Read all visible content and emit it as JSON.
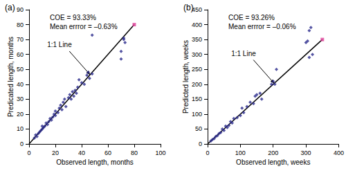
{
  "chart_data": [
    {
      "type": "scatter",
      "title": "(a)",
      "x_label": "Observed length, months",
      "y_label": "Predicated length, months",
      "annotations": [
        "COE = 93.33%",
        "Mean errror = –0.63%",
        "1:1 Line"
      ],
      "xlim": [
        0,
        100
      ],
      "xticks": [
        0,
        20,
        40,
        60,
        80,
        100
      ],
      "ylim": [
        0,
        90
      ],
      "yticks": [
        0,
        10,
        20,
        30,
        40,
        50,
        60,
        70,
        80,
        90
      ],
      "grid": false,
      "series": [
        {
          "color": "#2b2b8c",
          "marker": "diamond",
          "x": [
            4,
            5,
            6,
            7,
            8,
            9,
            10,
            10,
            11,
            12,
            13,
            14,
            15,
            16,
            17,
            18,
            19,
            20,
            20,
            22,
            23,
            24,
            25,
            26,
            27,
            28,
            30,
            31,
            32,
            33,
            34,
            35,
            36,
            37,
            38,
            40,
            42,
            44,
            45,
            46,
            48,
            48,
            70,
            70,
            72,
            72,
            73
          ],
          "values": [
            4,
            6,
            5,
            7,
            8,
            9,
            10,
            12,
            11,
            12,
            14,
            13,
            15,
            17,
            16,
            18,
            20,
            19,
            22,
            21,
            24,
            26,
            23,
            28,
            30,
            25,
            31,
            33,
            30,
            35,
            32,
            36,
            34,
            38,
            43,
            41,
            40,
            46,
            48,
            44,
            47,
            73,
            57,
            62,
            70,
            71,
            68
          ]
        },
        {
          "color": "#e0409a",
          "marker": "square",
          "x": [
            80
          ],
          "values": [
            80
          ]
        },
        {
          "type": "line",
          "color": "#000000",
          "x": [
            0,
            80
          ],
          "values": [
            0,
            80
          ]
        }
      ]
    },
    {
      "type": "scatter",
      "title": "(b)",
      "x_label": "Observed length, weeks",
      "y_label": "Predicted length, weeks",
      "annotations": [
        "COE = 93.26%",
        "Mean errror = –0.06%",
        "1:1 Line"
      ],
      "xlim": [
        0,
        400
      ],
      "xticks": [
        0,
        100,
        200,
        300,
        400
      ],
      "ylim": [
        0,
        450
      ],
      "yticks": [
        0,
        50,
        100,
        150,
        200,
        250,
        300,
        350,
        400,
        450
      ],
      "grid": false,
      "series": [
        {
          "color": "#2b2b8c",
          "marker": "diamond",
          "x": [
            10,
            15,
            20,
            25,
            30,
            35,
            40,
            45,
            50,
            55,
            60,
            65,
            70,
            75,
            80,
            90,
            100,
            105,
            110,
            120,
            130,
            140,
            145,
            150,
            160,
            165,
            195,
            200,
            205,
            210,
            300,
            305,
            310,
            315,
            310,
            320
          ],
          "values": [
            10,
            15,
            18,
            25,
            28,
            35,
            38,
            50,
            45,
            60,
            55,
            62,
            75,
            70,
            85,
            88,
            95,
            120,
            105,
            125,
            140,
            135,
            160,
            165,
            170,
            150,
            200,
            210,
            200,
            250,
            340,
            345,
            380,
            390,
            290,
            300
          ]
        },
        {
          "color": "#e0409a",
          "marker": "square",
          "x": [
            350
          ],
          "values": [
            350
          ]
        },
        {
          "type": "line",
          "color": "#000000",
          "x": [
            0,
            350
          ],
          "values": [
            0,
            350
          ]
        }
      ]
    }
  ]
}
